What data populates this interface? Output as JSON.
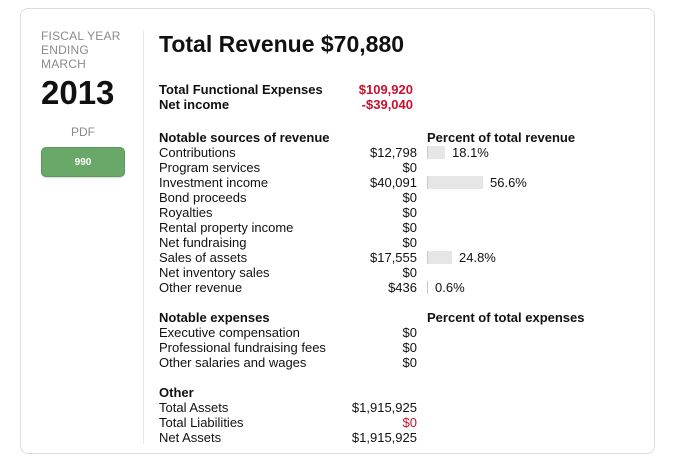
{
  "sidebar": {
    "fiscal_label_1": "FISCAL YEAR",
    "fiscal_label_2": "ENDING",
    "fiscal_label_3": "MARCH",
    "year": "2013",
    "pdf_label": "PDF",
    "button_label": "990",
    "button_color": "#6aa86a"
  },
  "header": {
    "title": "Total Revenue $70,880"
  },
  "summary": [
    {
      "label": "Total Functional Expenses",
      "value": "$109,920"
    },
    {
      "label": "Net income",
      "value": "-$39,040"
    }
  ],
  "revenue": {
    "heading": "Notable sources of revenue",
    "pct_heading": "Percent of total revenue",
    "items": [
      {
        "label": "Contributions",
        "value": "$12,798",
        "pct": "18.1%",
        "pct_value": 18.1
      },
      {
        "label": "Program services",
        "value": "$0"
      },
      {
        "label": "Investment income",
        "value": "$40,091",
        "pct": "56.6%",
        "pct_value": 56.6
      },
      {
        "label": "Bond proceeds",
        "value": "$0"
      },
      {
        "label": "Royalties",
        "value": "$0"
      },
      {
        "label": "Rental property income",
        "value": "$0"
      },
      {
        "label": "Net fundraising",
        "value": "$0"
      },
      {
        "label": "Sales of assets",
        "value": "$17,555",
        "pct": "24.8%",
        "pct_value": 24.8
      },
      {
        "label": "Net inventory sales",
        "value": "$0"
      },
      {
        "label": "Other revenue",
        "value": "$436",
        "pct": "0.6%",
        "pct_value": 0.6
      }
    ]
  },
  "expenses": {
    "heading": "Notable expenses",
    "pct_heading": "Percent of total expenses",
    "items": [
      {
        "label": "Executive compensation",
        "value": "$0"
      },
      {
        "label": "Professional fundraising fees",
        "value": "$0"
      },
      {
        "label": "Other salaries and wages",
        "value": "$0"
      }
    ]
  },
  "other": {
    "heading": "Other",
    "items": [
      {
        "label": "Total Assets",
        "value": "$1,915,925"
      },
      {
        "label": "Total Liabilities",
        "value": "$0",
        "highlight": true
      },
      {
        "label": "Net Assets",
        "value": "$1,915,925"
      }
    ]
  },
  "colors": {
    "accent_red": "#c8102e",
    "bar_fill": "#e6e6e6"
  }
}
